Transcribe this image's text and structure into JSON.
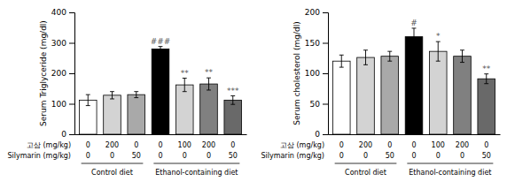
{
  "chart_data": [
    {
      "type": "bar",
      "ylabel": "Serum Triglyceride (mg/dl)",
      "values": [
        112,
        128,
        130,
        280,
        162,
        165,
        112
      ],
      "errors": [
        18,
        12,
        10,
        8,
        22,
        20,
        14
      ],
      "colors": [
        "#ffffff",
        "#d3d3d3",
        "#a9a9a9",
        "#000000",
        "#d3d3d3",
        "#808080",
        "#696969"
      ],
      "annotations": [
        null,
        null,
        null,
        "###",
        "**",
        "**",
        "***"
      ],
      "ylim": [
        0,
        400
      ],
      "yticks": [
        0,
        100,
        200,
        300,
        400
      ],
      "tick_labels": "y",
      "grid": false,
      "x_table": [
        {
          "label": "고삼 (mg/kg)",
          "values": [
            "0",
            "200",
            "0",
            "0",
            "100",
            "200",
            "0"
          ]
        },
        {
          "label": "Silymarin (mg/kg)",
          "values": [
            "0",
            "0",
            "50",
            "0",
            "0",
            "0",
            "50"
          ]
        }
      ],
      "groups": [
        {
          "label": "Control diet",
          "size": 3
        },
        {
          "label": "Ethanol-containing diet",
          "size": 4
        }
      ]
    },
    {
      "type": "bar",
      "ylabel": "Serum cholesterol (mg/dl)",
      "values": [
        120,
        126,
        128,
        160,
        136,
        128,
        91
      ],
      "errors": [
        10,
        12,
        8,
        14,
        16,
        10,
        8
      ],
      "colors": [
        "#ffffff",
        "#d3d3d3",
        "#a9a9a9",
        "#000000",
        "#d3d3d3",
        "#808080",
        "#696969"
      ],
      "annotations": [
        null,
        null,
        null,
        "#",
        "*",
        null,
        "**"
      ],
      "ylim": [
        0,
        200
      ],
      "yticks": [
        0,
        50,
        100,
        150,
        200
      ],
      "tick_labels": "y",
      "grid": false,
      "x_table": [
        {
          "label": "고삼 (mg/kg)",
          "values": [
            "0",
            "200",
            "0",
            "0",
            "100",
            "200",
            "0"
          ]
        },
        {
          "label": "Silymarin (mg/kg)",
          "values": [
            "0",
            "0",
            "50",
            "0",
            "0",
            "0",
            "50"
          ]
        }
      ],
      "groups": [
        {
          "label": "Control diet",
          "size": 3
        },
        {
          "label": "Ethanol-containing diet",
          "size": 4
        }
      ]
    }
  ]
}
